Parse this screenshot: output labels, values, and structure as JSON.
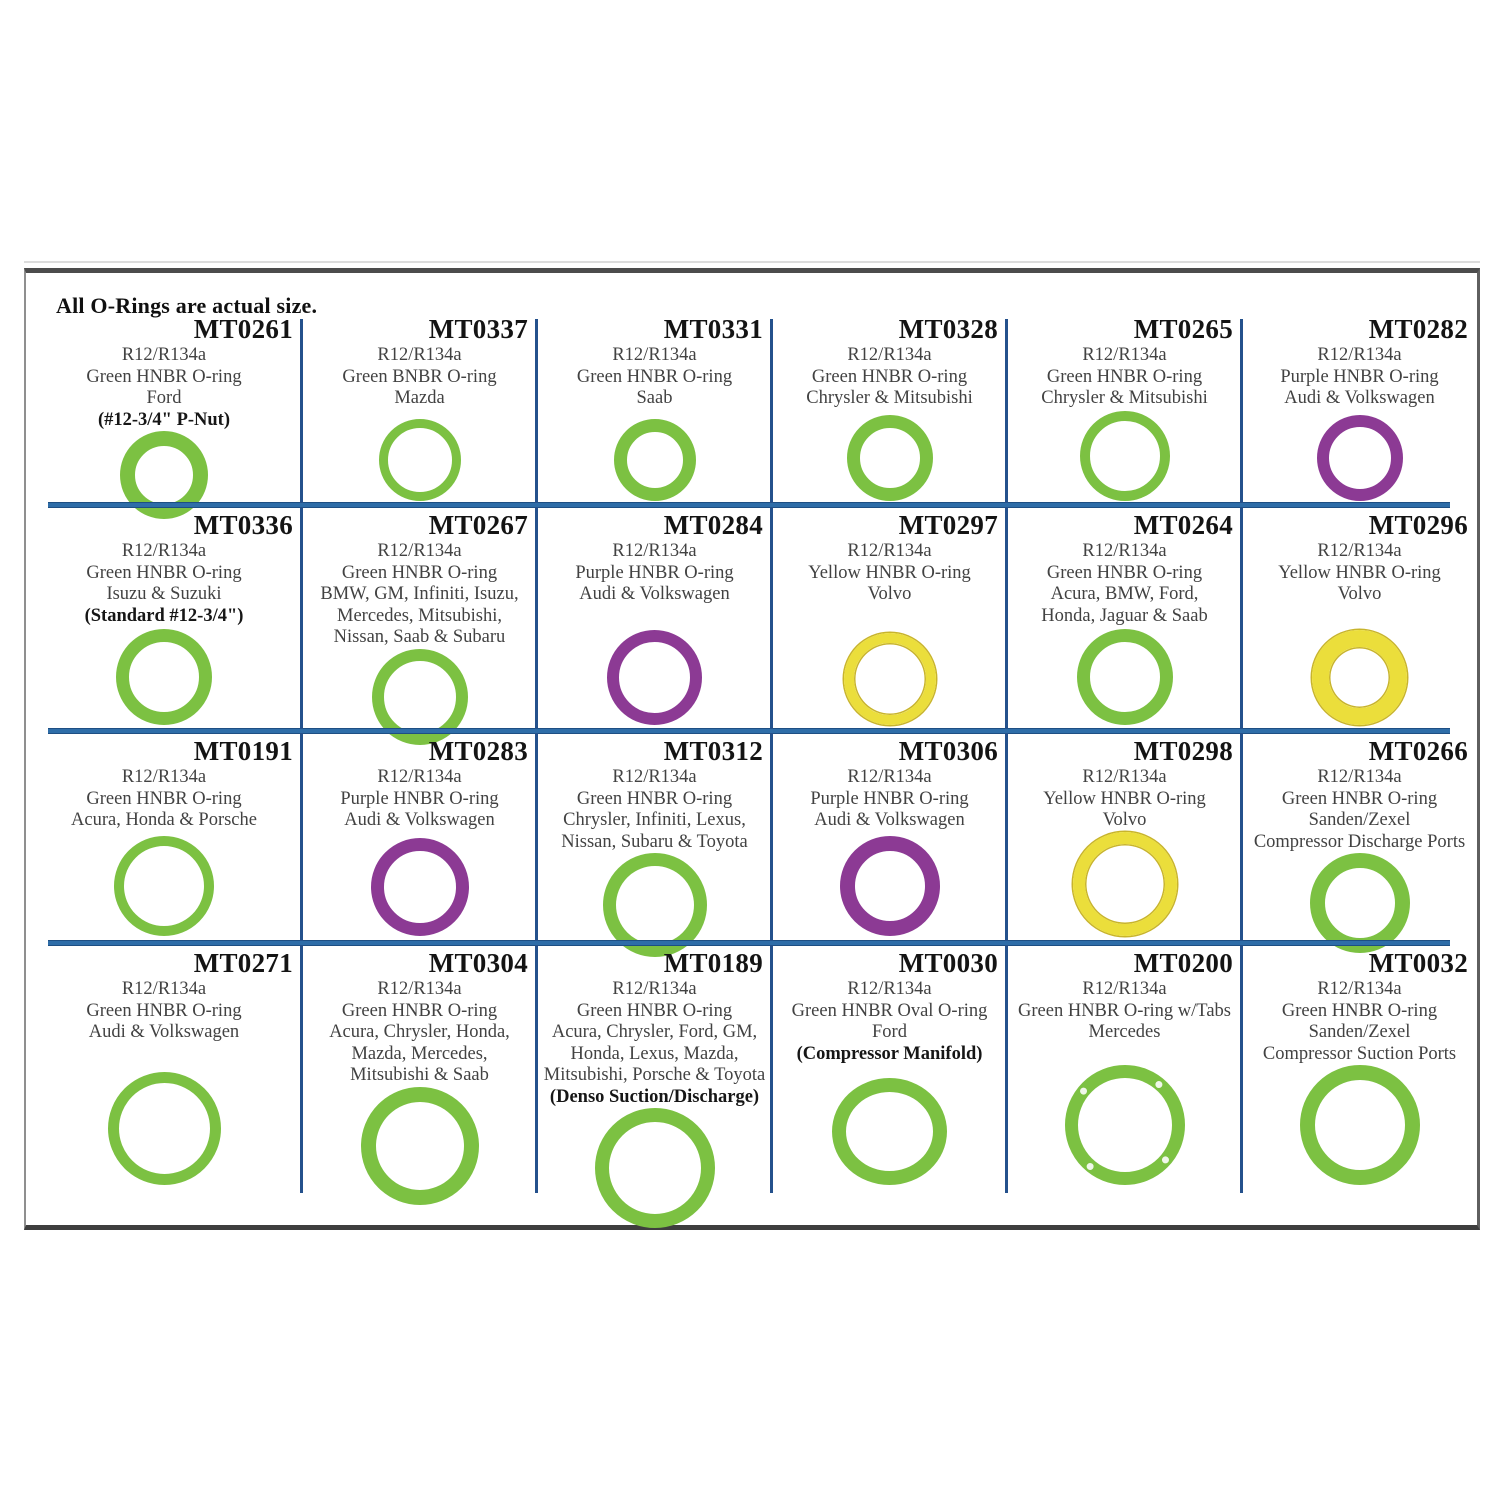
{
  "title": "All O-Rings are actual size.",
  "colors": {
    "green": "#7CC142",
    "purple": "#8C3A94",
    "yellow": "#EBDE3B",
    "yellow_edge": "#C8B42C",
    "row_line_blue": "#2E6DA8",
    "column_line_blue": "#24518C",
    "border_gray": "#4C4C4C"
  },
  "cells": [
    {
      "part": "MT0261",
      "lines": [
        {
          "text": "R12/R134a",
          "bold": false
        },
        {
          "text": "Green HNBR O-ring",
          "bold": false
        },
        {
          "text": "Ford",
          "bold": false
        },
        {
          "text": "(#12-3/4\" P-Nut)",
          "bold": true
        }
      ],
      "ring": {
        "color": "green",
        "size": 88,
        "stroke": 15,
        "tabs": false,
        "oval": false
      }
    },
    {
      "part": "MT0337",
      "lines": [
        {
          "text": "R12/R134a",
          "bold": false
        },
        {
          "text": "Green BNBR O-ring",
          "bold": false
        },
        {
          "text": "Mazda",
          "bold": false
        }
      ],
      "ring": {
        "color": "green",
        "size": 82,
        "stroke": 9,
        "tabs": false,
        "oval": false
      }
    },
    {
      "part": "MT0331",
      "lines": [
        {
          "text": "R12/R134a",
          "bold": false
        },
        {
          "text": "Green HNBR O-ring",
          "bold": false
        },
        {
          "text": "Saab",
          "bold": false
        }
      ],
      "ring": {
        "color": "green",
        "size": 82,
        "stroke": 13,
        "tabs": false,
        "oval": false
      }
    },
    {
      "part": "MT0328",
      "lines": [
        {
          "text": "R12/R134a",
          "bold": false
        },
        {
          "text": "Green HNBR O-ring",
          "bold": false
        },
        {
          "text": "Chrysler & Mitsubishi",
          "bold": false
        }
      ],
      "ring": {
        "color": "green",
        "size": 86,
        "stroke": 13,
        "tabs": false,
        "oval": false
      }
    },
    {
      "part": "MT0265",
      "lines": [
        {
          "text": "R12/R134a",
          "bold": false
        },
        {
          "text": "Green HNBR O-ring",
          "bold": false
        },
        {
          "text": "Chrysler & Mitsubishi",
          "bold": false
        }
      ],
      "ring": {
        "color": "green",
        "size": 90,
        "stroke": 10,
        "tabs": false,
        "oval": false
      }
    },
    {
      "part": "MT0282",
      "lines": [
        {
          "text": "R12/R134a",
          "bold": false
        },
        {
          "text": "Purple HNBR O-ring",
          "bold": false
        },
        {
          "text": "Audi & Volkswagen",
          "bold": false
        }
      ],
      "ring": {
        "color": "purple",
        "size": 86,
        "stroke": 12,
        "tabs": false,
        "oval": false
      }
    },
    {
      "part": "MT0336",
      "lines": [
        {
          "text": "R12/R134a",
          "bold": false
        },
        {
          "text": "Green HNBR O-ring",
          "bold": false
        },
        {
          "text": "Isuzu & Suzuki",
          "bold": false
        },
        {
          "text": "(Standard #12-3/4\")",
          "bold": true
        }
      ],
      "ring": {
        "color": "green",
        "size": 96,
        "stroke": 13,
        "tabs": false,
        "oval": false
      }
    },
    {
      "part": "MT0267",
      "lines": [
        {
          "text": "R12/R134a",
          "bold": false
        },
        {
          "text": "Green HNBR O-ring",
          "bold": false
        },
        {
          "text": "BMW, GM, Infiniti, Isuzu,",
          "bold": false
        },
        {
          "text": "Mercedes, Mitsubishi,",
          "bold": false
        },
        {
          "text": "Nissan, Saab & Subaru",
          "bold": false
        }
      ],
      "ring": {
        "color": "green",
        "size": 96,
        "stroke": 12,
        "tabs": false,
        "oval": false
      }
    },
    {
      "part": "MT0284",
      "lines": [
        {
          "text": "R12/R134a",
          "bold": false
        },
        {
          "text": "Purple HNBR O-ring",
          "bold": false
        },
        {
          "text": "Audi & Volkswagen",
          "bold": false
        }
      ],
      "ring": {
        "color": "purple",
        "size": 95,
        "stroke": 12,
        "tabs": false,
        "oval": false
      }
    },
    {
      "part": "MT0297",
      "lines": [
        {
          "text": "R12/R134a",
          "bold": false
        },
        {
          "text": "Yellow HNBR O-ring",
          "bold": false
        },
        {
          "text": "Volvo",
          "bold": false
        }
      ],
      "ring": {
        "color": "yellow",
        "size": 92,
        "stroke": 10,
        "tabs": false,
        "oval": false
      }
    },
    {
      "part": "MT0264",
      "lines": [
        {
          "text": "R12/R134a",
          "bold": false
        },
        {
          "text": "Green HNBR O-ring",
          "bold": false
        },
        {
          "text": "Acura, BMW, Ford,",
          "bold": false
        },
        {
          "text": "Honda, Jaguar & Saab",
          "bold": false
        }
      ],
      "ring": {
        "color": "green",
        "size": 96,
        "stroke": 13,
        "tabs": false,
        "oval": false
      }
    },
    {
      "part": "MT0296",
      "lines": [
        {
          "text": "R12/R134a",
          "bold": false
        },
        {
          "text": "Yellow HNBR O-ring",
          "bold": false
        },
        {
          "text": "Volvo",
          "bold": false
        }
      ],
      "ring": {
        "color": "yellow",
        "size": 95,
        "stroke": 17,
        "tabs": false,
        "oval": false
      }
    },
    {
      "part": "MT0191",
      "lines": [
        {
          "text": "R12/R134a",
          "bold": false
        },
        {
          "text": "Green HNBR O-ring",
          "bold": false
        },
        {
          "text": "Acura, Honda & Porsche",
          "bold": false
        }
      ],
      "ring": {
        "color": "green",
        "size": 100,
        "stroke": 10,
        "tabs": false,
        "oval": false
      }
    },
    {
      "part": "MT0283",
      "lines": [
        {
          "text": "R12/R134a",
          "bold": false
        },
        {
          "text": "Purple HNBR O-ring",
          "bold": false
        },
        {
          "text": "Audi & Volkswagen",
          "bold": false
        }
      ],
      "ring": {
        "color": "purple",
        "size": 98,
        "stroke": 13,
        "tabs": false,
        "oval": false
      }
    },
    {
      "part": "MT0312",
      "lines": [
        {
          "text": "R12/R134a",
          "bold": false
        },
        {
          "text": "Green HNBR O-ring",
          "bold": false
        },
        {
          "text": "Chrysler, Infiniti, Lexus,",
          "bold": false
        },
        {
          "text": "Nissan, Subaru & Toyota",
          "bold": false
        }
      ],
      "ring": {
        "color": "green",
        "size": 104,
        "stroke": 13,
        "tabs": false,
        "oval": false
      }
    },
    {
      "part": "MT0306",
      "lines": [
        {
          "text": "R12/R134a",
          "bold": false
        },
        {
          "text": "Purple HNBR O-ring",
          "bold": false
        },
        {
          "text": "Audi & Volkswagen",
          "bold": false
        }
      ],
      "ring": {
        "color": "purple",
        "size": 100,
        "stroke": 15,
        "tabs": false,
        "oval": false
      }
    },
    {
      "part": "MT0298",
      "lines": [
        {
          "text": "R12/R134a",
          "bold": false
        },
        {
          "text": "Yellow HNBR O-ring",
          "bold": false
        },
        {
          "text": "Volvo",
          "bold": false
        }
      ],
      "ring": {
        "color": "yellow",
        "size": 104,
        "stroke": 12,
        "tabs": false,
        "oval": false
      }
    },
    {
      "part": "MT0266",
      "lines": [
        {
          "text": "R12/R134a",
          "bold": false
        },
        {
          "text": "Green HNBR O-ring",
          "bold": false
        },
        {
          "text": "Sanden/Zexel",
          "bold": false
        },
        {
          "text": "Compressor Discharge Ports",
          "bold": false
        }
      ],
      "ring": {
        "color": "green",
        "size": 100,
        "stroke": 15,
        "tabs": false,
        "oval": false
      }
    },
    {
      "part": "MT0271",
      "lines": [
        {
          "text": "R12/R134a",
          "bold": false
        },
        {
          "text": "Green HNBR O-ring",
          "bold": false
        },
        {
          "text": "Audi & Volkswagen",
          "bold": false
        }
      ],
      "ring": {
        "color": "green",
        "size": 113,
        "stroke": 11,
        "tabs": false,
        "oval": false
      }
    },
    {
      "part": "MT0304",
      "lines": [
        {
          "text": "R12/R134a",
          "bold": false
        },
        {
          "text": "Green HNBR O-ring",
          "bold": false
        },
        {
          "text": "Acura, Chrysler, Honda,",
          "bold": false
        },
        {
          "text": "Mazda, Mercedes,",
          "bold": false
        },
        {
          "text": "Mitsubishi & Saab",
          "bold": false
        }
      ],
      "ring": {
        "color": "green",
        "size": 118,
        "stroke": 15,
        "tabs": false,
        "oval": false
      }
    },
    {
      "part": "MT0189",
      "lines": [
        {
          "text": "R12/R134a",
          "bold": false
        },
        {
          "text": "Green HNBR O-ring",
          "bold": false
        },
        {
          "text": "Acura, Chrysler, Ford, GM,",
          "bold": false
        },
        {
          "text": "Honda, Lexus, Mazda,",
          "bold": false
        },
        {
          "text": "Mitsubishi, Porsche & Toyota",
          "bold": false
        },
        {
          "text": "(Denso Suction/Discharge)",
          "bold": true
        }
      ],
      "ring": {
        "color": "green",
        "size": 120,
        "stroke": 14,
        "tabs": false,
        "oval": false
      }
    },
    {
      "part": "MT0030",
      "lines": [
        {
          "text": "R12/R134a",
          "bold": false
        },
        {
          "text": "Green HNBR Oval O-ring",
          "bold": false
        },
        {
          "text": "Ford",
          "bold": false
        },
        {
          "text": "(Compressor Manifold)",
          "bold": true
        }
      ],
      "ring": {
        "color": "green",
        "size": 115,
        "stroke": 14,
        "tabs": false,
        "oval": true
      }
    },
    {
      "part": "MT0200",
      "lines": [
        {
          "text": "R12/R134a",
          "bold": false
        },
        {
          "text": "Green HNBR O-ring w/Tabs",
          "bold": false
        },
        {
          "text": "Mercedes",
          "bold": false
        }
      ],
      "ring": {
        "color": "green",
        "size": 120,
        "stroke": 13,
        "tabs": true,
        "oval": false
      }
    },
    {
      "part": "MT0032",
      "lines": [
        {
          "text": "R12/R134a",
          "bold": false
        },
        {
          "text": "Green HNBR O-ring",
          "bold": false
        },
        {
          "text": "Sanden/Zexel",
          "bold": false
        },
        {
          "text": "Compressor Suction Ports",
          "bold": false
        }
      ],
      "ring": {
        "color": "green",
        "size": 120,
        "stroke": 15,
        "tabs": false,
        "oval": false
      }
    }
  ]
}
